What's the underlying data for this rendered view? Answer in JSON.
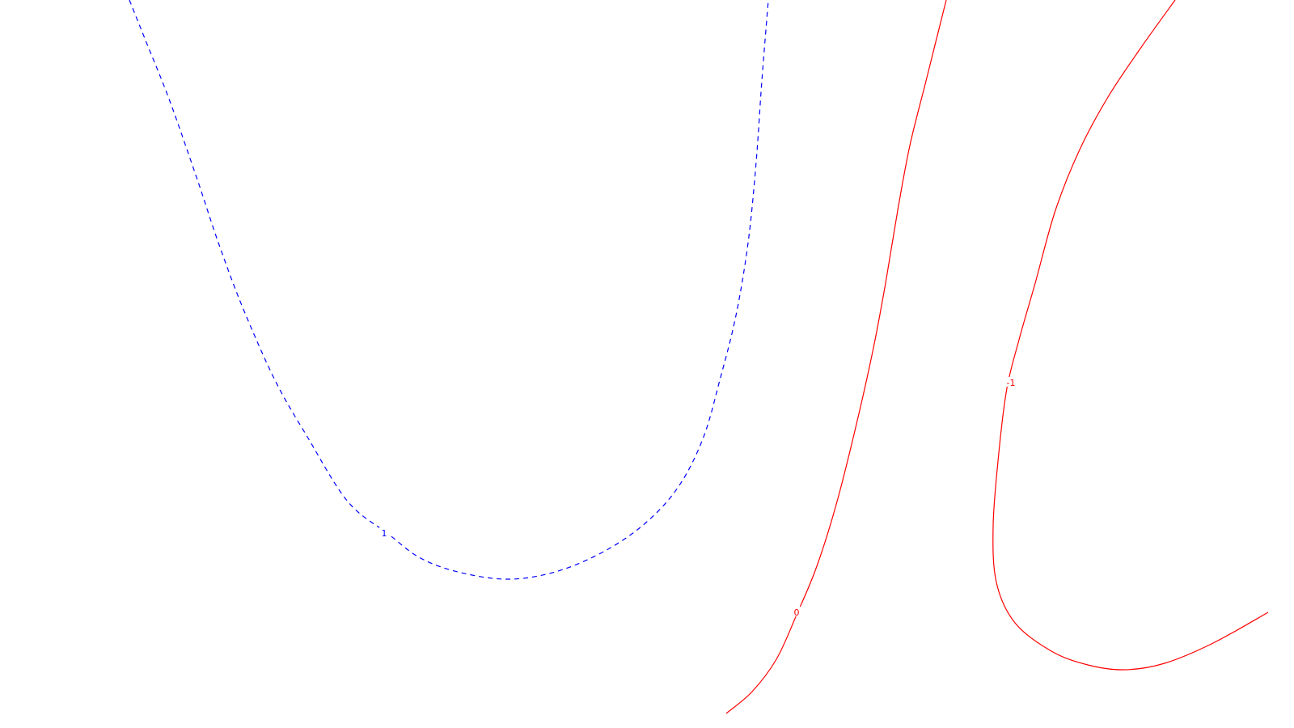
{
  "chart_data": {
    "type": "contour",
    "title": "",
    "xlabel": "",
    "ylabel": "",
    "grid": false,
    "legend": "none",
    "levels": [
      {
        "level": 1,
        "label": "1",
        "color": "#0000ff",
        "line_style": "dashed",
        "points": [
          [
            160,
            0
          ],
          [
            180,
            50
          ],
          [
            210,
            125
          ],
          [
            245,
            225
          ],
          [
            270,
            300
          ],
          [
            300,
            380
          ],
          [
            340,
            470
          ],
          [
            380,
            540
          ],
          [
            430,
            620
          ],
          [
            480,
            660
          ],
          [
            520,
            690
          ],
          [
            570,
            708
          ],
          [
            630,
            716
          ],
          [
            690,
            706
          ],
          [
            750,
            680
          ],
          [
            800,
            645
          ],
          [
            840,
            600
          ],
          [
            870,
            540
          ],
          [
            890,
            470
          ],
          [
            910,
            390
          ],
          [
            925,
            300
          ],
          [
            935,
            200
          ],
          [
            942,
            100
          ],
          [
            950,
            0
          ]
        ],
        "label_point": [
          475,
          659
        ]
      },
      {
        "level": 0,
        "label": "0",
        "color": "#ff0000",
        "line_style": "solid",
        "points": [
          [
            898,
            882
          ],
          [
            930,
            855
          ],
          [
            960,
            815
          ],
          [
            985,
            760
          ],
          [
            1010,
            700
          ],
          [
            1035,
            620
          ],
          [
            1060,
            520
          ],
          [
            1080,
            430
          ],
          [
            1095,
            350
          ],
          [
            1110,
            260
          ],
          [
            1125,
            180
          ],
          [
            1145,
            100
          ],
          [
            1170,
            0
          ]
        ],
        "label_point": [
          985,
          757
        ]
      },
      {
        "level": -1,
        "label": "-1",
        "color": "#ff0000",
        "line_style": "solid",
        "points": [
          [
            1453,
            0
          ],
          [
            1410,
            60
          ],
          [
            1370,
            120
          ],
          [
            1335,
            185
          ],
          [
            1305,
            260
          ],
          [
            1280,
            350
          ],
          [
            1260,
            420
          ],
          [
            1245,
            480
          ],
          [
            1235,
            560
          ],
          [
            1228,
            650
          ],
          [
            1232,
            720
          ],
          [
            1255,
            770
          ],
          [
            1300,
            805
          ],
          [
            1345,
            822
          ],
          [
            1390,
            828
          ],
          [
            1440,
            820
          ],
          [
            1500,
            795
          ],
          [
            1568,
            757
          ]
        ],
        "label_point": [
          1250,
          473
        ]
      }
    ]
  }
}
